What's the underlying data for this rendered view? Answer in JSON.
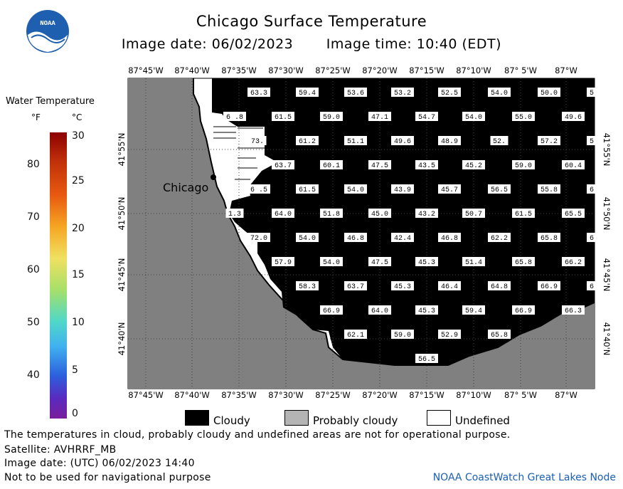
{
  "header": {
    "title": "Chicago Surface Temperature",
    "image_date": "Image date: 06/02/2023",
    "image_time": "Image time: 10:40 (EDT)"
  },
  "logo": {
    "text": "NOAA"
  },
  "colorbar": {
    "title": "Water Temperature",
    "unit_f": "°F",
    "unit_c": "°C",
    "f_ticks": [
      "80",
      "70",
      "60",
      "50",
      "40"
    ],
    "c_ticks": [
      "30",
      "25",
      "20",
      "15",
      "10",
      "5",
      "0"
    ]
  },
  "map": {
    "lon_labels": [
      "87°45'W",
      "87°40'W",
      "87°35'W",
      "87°30'W",
      "87°25'W",
      "87°20'W",
      "87°15'W",
      "87°10'W",
      "87° 5'W",
      "87°W"
    ],
    "lat_labels": [
      "41°55'N",
      "41°50'N",
      "41°45'N",
      "41°40'N"
    ],
    "city_label": "Chicago",
    "temperatures": [
      [
        "63.3",
        "59.4",
        "53.6",
        "53.2",
        "52.5",
        "54.0",
        "50.0",
        "5"
      ],
      [
        "6 .8",
        "61.5",
        "59.0",
        "47.1",
        "54.7",
        "54.0",
        "55.0",
        "49.6"
      ],
      [
        "73.",
        "61.2",
        "51.1",
        "49.6",
        "48.9",
        "52.",
        "57.2",
        "5"
      ],
      [
        "63.7",
        "60.1",
        "47.5",
        "43.5",
        "45.2",
        "59.0",
        "60.4"
      ],
      [
        "6 .5",
        "61.5",
        "54.0",
        "43.9",
        "45.7",
        "56.5",
        "55.8",
        "6"
      ],
      [
        "1.3",
        "64.0",
        "51.8",
        "45.0",
        "43.2",
        "50.7",
        "61.5",
        "65.5"
      ],
      [
        "72.0",
        "54.0",
        "46.8",
        "42.4",
        "46.8",
        "62.2",
        "65.8",
        "6"
      ],
      [
        "57.9",
        "54.0",
        "47.5",
        "45.3",
        "51.4",
        "65.8",
        "66.2"
      ],
      [
        "58.3",
        "63.7",
        "45.3",
        "46.4",
        "64.8",
        "66.9",
        "6"
      ],
      [
        "66.9",
        "64.0",
        "45.3",
        "59.4",
        "66.9",
        "66.3"
      ],
      [
        "62.1",
        "59.0",
        "52.9",
        "65.8"
      ],
      [
        "56.5"
      ]
    ]
  },
  "legend": {
    "cloudy": "Cloudy",
    "probably_cloudy": "Probably cloudy",
    "undefined": "Undefined"
  },
  "footer": {
    "disclaimer": "The temperatures in cloud, probably cloudy and undefined areas are not for operational purpose.",
    "satellite": "Satellite: AVHRRF_MB",
    "utc_date": "Image date: (UTC) 06/02/2023  14:40",
    "nav_warning": "Not to be used for navigational purpose",
    "credit": "NOAA CoastWatch Great Lakes Node"
  },
  "colors": {
    "cloudy": "#000000",
    "land": "#808080",
    "probably_cloudy": "#b4b4b4",
    "undefined": "#ffffff"
  }
}
